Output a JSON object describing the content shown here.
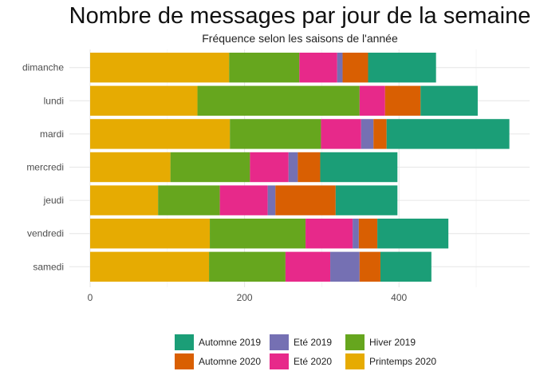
{
  "chart_data": {
    "type": "bar",
    "orientation": "horizontal",
    "stacked": true,
    "title": "Nombre de messages par jour de la semaine",
    "subtitle": "Fréquence selon les saisons de l'année",
    "xlabel": "",
    "ylabel": "",
    "xlim": [
      0,
      540
    ],
    "xticks": [
      0,
      200,
      400
    ],
    "grid": true,
    "legend_position": "bottom",
    "categories": [
      "dimanche",
      "lundi",
      "mardi",
      "mercredi",
      "jeudi",
      "vendredi",
      "samedi"
    ],
    "series": [
      {
        "name": "Printemps 2020",
        "color": "#E6AB02",
        "values": [
          180,
          139,
          181,
          104,
          88,
          155,
          154
        ]
      },
      {
        "name": "Hiver 2019",
        "color": "#66A61E",
        "values": [
          91,
          210,
          118,
          103,
          80,
          124,
          99
        ]
      },
      {
        "name": "Eté 2020",
        "color": "#E7298A",
        "values": [
          49,
          33,
          52,
          50,
          62,
          61,
          58
        ]
      },
      {
        "name": "Eté 2019",
        "color": "#7570B3",
        "values": [
          7,
          0,
          16,
          12,
          10,
          8,
          38
        ]
      },
      {
        "name": "Automne 2020",
        "color": "#D95F02",
        "values": [
          33,
          46,
          17,
          29,
          78,
          24,
          27
        ]
      },
      {
        "name": "Automne 2019",
        "color": "#1B9E77",
        "values": [
          88,
          74,
          159,
          100,
          80,
          92,
          66
        ]
      }
    ],
    "legend": {
      "rows": [
        [
          "Automne 2019",
          "Eté 2019",
          "Hiver 2019"
        ],
        [
          "Automne 2020",
          "Eté 2020",
          "Printemps 2020"
        ]
      ]
    }
  }
}
